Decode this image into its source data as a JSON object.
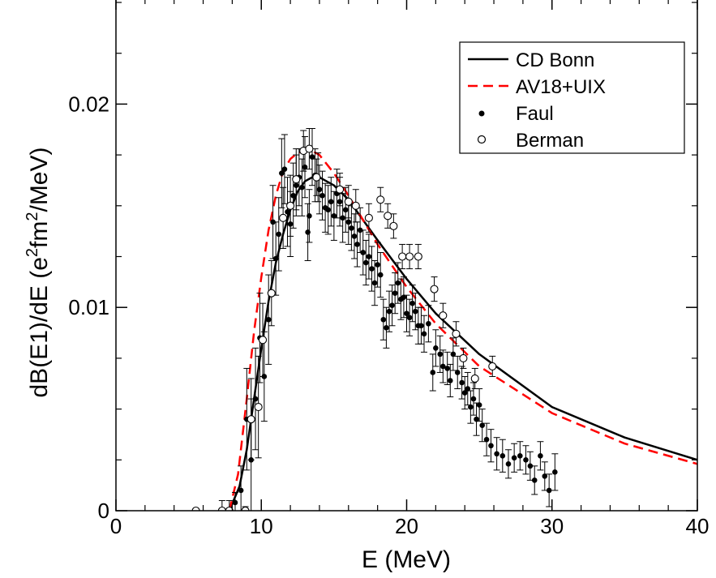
{
  "chart_data": {
    "type": "scatter",
    "xlabel": "E (MeV)",
    "ylabel": {
      "prefix": "dB(E1)/dE  (e",
      "sup1": "2",
      "mid": "fm",
      "sup2": "2",
      "suffix": "/MeV)"
    },
    "xlim": [
      0,
      40
    ],
    "ylim": [
      0,
      0.025
    ],
    "x_ticks": [
      0,
      10,
      20,
      30,
      40
    ],
    "y_ticks": [
      0,
      0.01,
      0.02
    ],
    "x_tick_labels": [
      "0",
      "10",
      "20",
      "30",
      "40"
    ],
    "y_tick_labels": [
      "0",
      "0.01",
      "0.02"
    ],
    "legend_position": "top-right",
    "grid": false,
    "series": [
      {
        "name": "CD Bonn",
        "kind": "line",
        "style": "solid",
        "color": "#000000",
        "points": [
          [
            7.8,
            0
          ],
          [
            8.5,
            0.0012
          ],
          [
            9,
            0.003
          ],
          [
            9.5,
            0.0055
          ],
          [
            10,
            0.008
          ],
          [
            10.5,
            0.0103
          ],
          [
            11,
            0.0122
          ],
          [
            11.5,
            0.0136
          ],
          [
            12,
            0.0148
          ],
          [
            12.5,
            0.0157
          ],
          [
            13,
            0.0162
          ],
          [
            13.5,
            0.0164
          ],
          [
            14,
            0.0164
          ],
          [
            15,
            0.016
          ],
          [
            16,
            0.0153
          ],
          [
            17,
            0.0143
          ],
          [
            18,
            0.0133
          ],
          [
            20,
            0.0114
          ],
          [
            22,
            0.0097
          ],
          [
            25,
            0.0077
          ],
          [
            30,
            0.0051
          ],
          [
            35,
            0.0036
          ],
          [
            40,
            0.0025
          ]
        ]
      },
      {
        "name": "AV18+UIX",
        "kind": "line",
        "style": "dashed",
        "color": "#ff0000",
        "points": [
          [
            7.8,
            0
          ],
          [
            8.4,
            0.0018
          ],
          [
            9,
            0.0055
          ],
          [
            9.5,
            0.0088
          ],
          [
            10,
            0.0115
          ],
          [
            10.5,
            0.0138
          ],
          [
            11,
            0.0155
          ],
          [
            11.5,
            0.0167
          ],
          [
            12,
            0.0173
          ],
          [
            12.5,
            0.0176
          ],
          [
            13,
            0.0177
          ],
          [
            13.5,
            0.0177
          ],
          [
            14,
            0.0175
          ],
          [
            15,
            0.0166
          ],
          [
            16,
            0.0155
          ],
          [
            17,
            0.0143
          ],
          [
            18,
            0.0131
          ],
          [
            20,
            0.011
          ],
          [
            22,
            0.0092
          ],
          [
            25,
            0.0071
          ],
          [
            30,
            0.0048
          ],
          [
            35,
            0.0033
          ],
          [
            40,
            0.0023
          ]
        ]
      },
      {
        "name": "Faul",
        "kind": "points",
        "marker": "filled-circle",
        "color": "#000000",
        "points": [
          [
            8.2,
            0.0004,
            0.0005
          ],
          [
            8.6,
            0.001,
            0.0012
          ],
          [
            9.0,
            0.0045,
            0.0025
          ],
          [
            9.3,
            0.0025,
            0.003
          ],
          [
            9.6,
            0.0055,
            0.0025
          ],
          [
            9.9,
            0.0085,
            0.0022
          ],
          [
            10.2,
            0.0066,
            0.0022
          ],
          [
            10.5,
            0.0094,
            0.0022
          ],
          [
            10.8,
            0.0142,
            0.0018
          ],
          [
            11.0,
            0.0124,
            0.0018
          ],
          [
            11.2,
            0.0136,
            0.0018
          ],
          [
            11.4,
            0.0166,
            0.0017
          ],
          [
            11.6,
            0.0168,
            0.0017
          ],
          [
            11.8,
            0.0147,
            0.0017
          ],
          [
            12.0,
            0.0141,
            0.0016
          ],
          [
            12.2,
            0.0155,
            0.0016
          ],
          [
            12.4,
            0.016,
            0.0015
          ],
          [
            12.6,
            0.0164,
            0.0014
          ],
          [
            12.8,
            0.0159,
            0.0014
          ],
          [
            13.0,
            0.0169,
            0.0015
          ],
          [
            13.2,
            0.0137,
            0.0014
          ],
          [
            13.3,
            0.0145,
            0.0013
          ],
          [
            13.5,
            0.0174,
            0.0014
          ],
          [
            13.7,
            0.0165,
            0.0013
          ],
          [
            13.9,
            0.0164,
            0.0012
          ],
          [
            14.0,
            0.0158,
            0.0012
          ],
          [
            14.2,
            0.0155,
            0.0012
          ],
          [
            14.4,
            0.0149,
            0.0012
          ],
          [
            14.6,
            0.0148,
            0.0012
          ],
          [
            14.8,
            0.0152,
            0.0012
          ],
          [
            15.0,
            0.0145,
            0.0012
          ],
          [
            15.2,
            0.0156,
            0.0012
          ],
          [
            15.4,
            0.0152,
            0.0012
          ],
          [
            15.6,
            0.0144,
            0.0012
          ],
          [
            15.8,
            0.0148,
            0.0011
          ],
          [
            16.0,
            0.0142,
            0.0011
          ],
          [
            16.2,
            0.0139,
            0.0011
          ],
          [
            16.4,
            0.0135,
            0.0011
          ],
          [
            16.6,
            0.0131,
            0.0011
          ],
          [
            16.8,
            0.0138,
            0.0011
          ],
          [
            17.0,
            0.0127,
            0.0011
          ],
          [
            17.2,
            0.0122,
            0.0011
          ],
          [
            17.4,
            0.0125,
            0.0011
          ],
          [
            17.6,
            0.0119,
            0.0011
          ],
          [
            17.8,
            0.0112,
            0.0011
          ],
          [
            18.0,
            0.0121,
            0.0011
          ],
          [
            18.2,
            0.0116,
            0.0011
          ],
          [
            18.4,
            0.0094,
            0.001
          ],
          [
            18.6,
            0.009,
            0.001
          ],
          [
            18.8,
            0.0098,
            0.001
          ],
          [
            19.0,
            0.0101,
            0.001
          ],
          [
            19.2,
            0.0107,
            0.001
          ],
          [
            19.4,
            0.0112,
            0.001
          ],
          [
            19.6,
            0.0104,
            0.001
          ],
          [
            19.8,
            0.0105,
            0.001
          ],
          [
            20.0,
            0.0097,
            0.0009
          ],
          [
            20.2,
            0.0095,
            0.0009
          ],
          [
            20.4,
            0.0102,
            0.0009
          ],
          [
            20.6,
            0.0098,
            0.0009
          ],
          [
            20.8,
            0.0091,
            0.0009
          ],
          [
            21.0,
            0.0091,
            0.0009
          ],
          [
            21.2,
            0.0087,
            0.0009
          ],
          [
            21.5,
            0.0092,
            0.0009
          ],
          [
            21.8,
            0.0068,
            0.0009
          ],
          [
            22.0,
            0.008,
            0.0009
          ],
          [
            22.3,
            0.0077,
            0.0009
          ],
          [
            22.5,
            0.0071,
            0.0008
          ],
          [
            22.8,
            0.007,
            0.0008
          ],
          [
            23.0,
            0.0064,
            0.0008
          ],
          [
            23.2,
            0.0077,
            0.0008
          ],
          [
            23.5,
            0.0068,
            0.0008
          ],
          [
            23.8,
            0.0063,
            0.0008
          ],
          [
            24.0,
            0.0058,
            0.0008
          ],
          [
            24.2,
            0.006,
            0.0008
          ],
          [
            24.4,
            0.0051,
            0.0008
          ],
          [
            24.6,
            0.0055,
            0.0008
          ],
          [
            24.8,
            0.0045,
            0.0008
          ],
          [
            25.0,
            0.0052,
            0.0008
          ],
          [
            25.2,
            0.0042,
            0.0008
          ],
          [
            25.5,
            0.0035,
            0.0008
          ],
          [
            25.8,
            0.0032,
            0.0008
          ],
          [
            26.2,
            0.0028,
            0.0008
          ],
          [
            26.6,
            0.0027,
            0.0008
          ],
          [
            27.0,
            0.0023,
            0.0007
          ],
          [
            27.4,
            0.0026,
            0.0007
          ],
          [
            27.8,
            0.0027,
            0.0007
          ],
          [
            28.2,
            0.0025,
            0.0007
          ],
          [
            28.5,
            0.0022,
            0.0007
          ],
          [
            28.8,
            0.0015,
            0.0007
          ],
          [
            29.2,
            0.0027,
            0.0007
          ],
          [
            29.5,
            0.0017,
            0.0007
          ],
          [
            29.8,
            0.001,
            0.0008
          ],
          [
            30.2,
            0.0019,
            0.0009
          ]
        ]
      },
      {
        "name": "Berman",
        "kind": "points",
        "marker": "open-circle",
        "color": "#000000",
        "points": [
          [
            5.5,
            0,
            0
          ],
          [
            7.3,
            0,
            0.0005
          ],
          [
            7.8,
            0,
            0.0005
          ],
          [
            8.9,
            0,
            0.0002
          ],
          [
            9.3,
            0.0045,
            0.002
          ],
          [
            9.8,
            0.0051,
            0.0025
          ],
          [
            10.1,
            0.0084,
            0.0018
          ],
          [
            10.7,
            0.0107,
            0.0016
          ],
          [
            11.5,
            0.0144,
            0.0015
          ],
          [
            12.0,
            0.015,
            0.0015
          ],
          [
            12.4,
            0.0163,
            0.0015
          ],
          [
            12.9,
            0.0177,
            0.001
          ],
          [
            13.3,
            0.0178,
            0.001
          ],
          [
            13.8,
            0.0164,
            0.0009
          ],
          [
            15.4,
            0.0158,
            0.0008
          ],
          [
            16.0,
            0.0152,
            0.0008
          ],
          [
            16.5,
            0.015,
            0.0008
          ],
          [
            17.4,
            0.0144,
            0.0007
          ],
          [
            18.2,
            0.0153,
            0.0006
          ],
          [
            18.7,
            0.0145,
            0.0006
          ],
          [
            19.1,
            0.014,
            0.0006
          ],
          [
            19.7,
            0.0125,
            0.0006
          ],
          [
            20.2,
            0.0125,
            0.0006
          ],
          [
            20.8,
            0.0125,
            0.0006
          ],
          [
            21.9,
            0.0109,
            0.0006
          ],
          [
            22.5,
            0.0096,
            0.0006
          ],
          [
            23.4,
            0.0087,
            0.0006
          ],
          [
            23.9,
            0.0075,
            0.0005
          ],
          [
            24.7,
            0.0065,
            0.0005
          ],
          [
            25.9,
            0.0071,
            0.0005
          ]
        ]
      }
    ]
  }
}
